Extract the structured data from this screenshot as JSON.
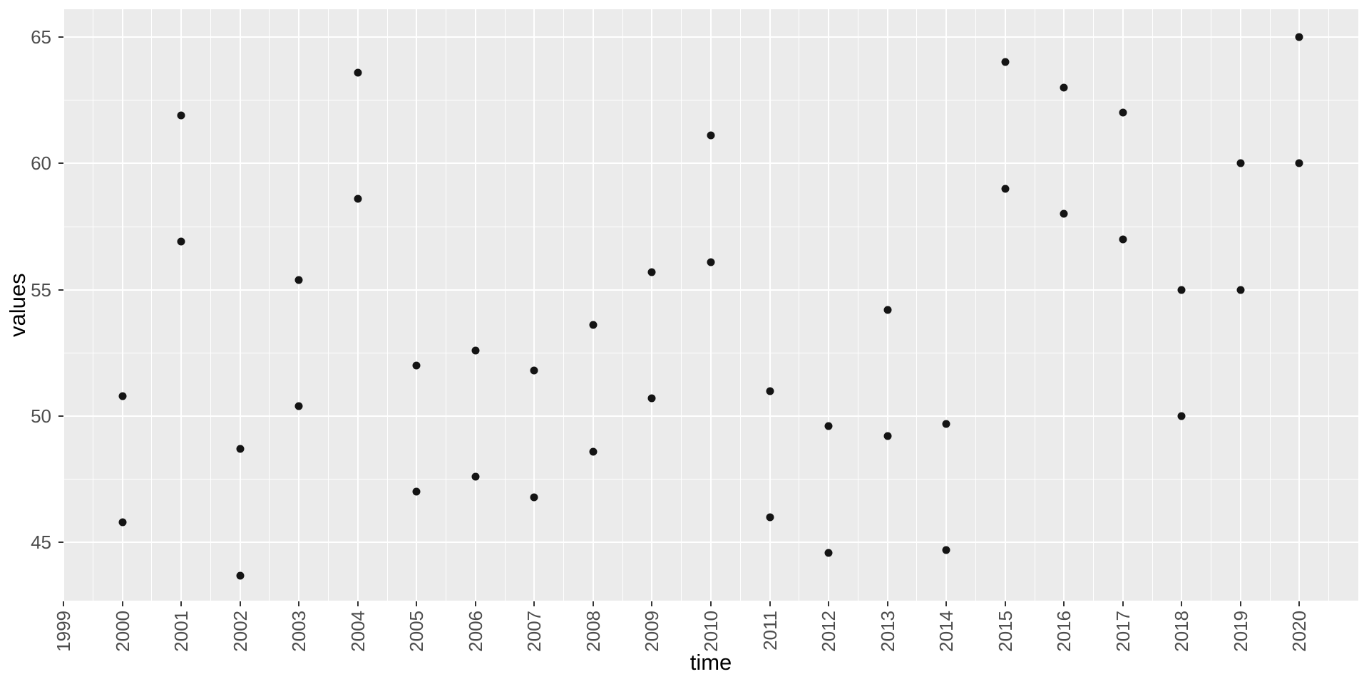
{
  "chart_data": {
    "type": "scatter",
    "title": "",
    "xlabel": "time",
    "ylabel": "values",
    "legend_position": "none",
    "grid": "white major and minor gridlines on gray panel",
    "xlim": [
      1999,
      2021
    ],
    "ylim": [
      42.7,
      66.1
    ],
    "x_ticks": [
      1999,
      2000,
      2001,
      2002,
      2003,
      2004,
      2005,
      2006,
      2007,
      2008,
      2009,
      2010,
      2011,
      2012,
      2013,
      2014,
      2015,
      2016,
      2017,
      2018,
      2019,
      2020
    ],
    "y_ticks": [
      45,
      50,
      55,
      60,
      65
    ],
    "points": [
      {
        "x": 2000,
        "y": 50.8
      },
      {
        "x": 2000,
        "y": 45.8
      },
      {
        "x": 2001,
        "y": 61.9
      },
      {
        "x": 2001,
        "y": 56.9
      },
      {
        "x": 2002,
        "y": 48.7
      },
      {
        "x": 2002,
        "y": 43.7
      },
      {
        "x": 2003,
        "y": 55.4
      },
      {
        "x": 2003,
        "y": 50.4
      },
      {
        "x": 2004,
        "y": 63.6
      },
      {
        "x": 2004,
        "y": 58.6
      },
      {
        "x": 2005,
        "y": 52.0
      },
      {
        "x": 2005,
        "y": 47.0
      },
      {
        "x": 2006,
        "y": 52.6
      },
      {
        "x": 2006,
        "y": 47.6
      },
      {
        "x": 2007,
        "y": 51.8
      },
      {
        "x": 2007,
        "y": 46.8
      },
      {
        "x": 2008,
        "y": 53.6
      },
      {
        "x": 2008,
        "y": 48.6
      },
      {
        "x": 2009,
        "y": 55.7
      },
      {
        "x": 2009,
        "y": 50.7
      },
      {
        "x": 2010,
        "y": 61.1
      },
      {
        "x": 2010,
        "y": 56.1
      },
      {
        "x": 2011,
        "y": 51.0
      },
      {
        "x": 2011,
        "y": 46.0
      },
      {
        "x": 2012,
        "y": 49.6
      },
      {
        "x": 2012,
        "y": 44.6
      },
      {
        "x": 2013,
        "y": 54.2
      },
      {
        "x": 2013,
        "y": 49.2
      },
      {
        "x": 2014,
        "y": 49.7
      },
      {
        "x": 2014,
        "y": 44.7
      },
      {
        "x": 2015,
        "y": 64.0
      },
      {
        "x": 2015,
        "y": 59.0
      },
      {
        "x": 2016,
        "y": 63.0
      },
      {
        "x": 2016,
        "y": 58.0
      },
      {
        "x": 2017,
        "y": 62.0
      },
      {
        "x": 2017,
        "y": 57.0
      },
      {
        "x": 2018,
        "y": 55.0
      },
      {
        "x": 2018,
        "y": 50.0
      },
      {
        "x": 2019,
        "y": 60.0
      },
      {
        "x": 2019,
        "y": 55.0
      },
      {
        "x": 2020,
        "y": 65.0
      },
      {
        "x": 2020,
        "y": 60.0
      }
    ],
    "colors": {
      "panel_bg": "#EBEBEB",
      "outer_bg": "#FFFFFF",
      "gridline": "#FFFFFF",
      "point": "#141414",
      "tick_mark": "#333333",
      "tick_label": "#4D4D4D",
      "axis_title": "#000000"
    }
  }
}
